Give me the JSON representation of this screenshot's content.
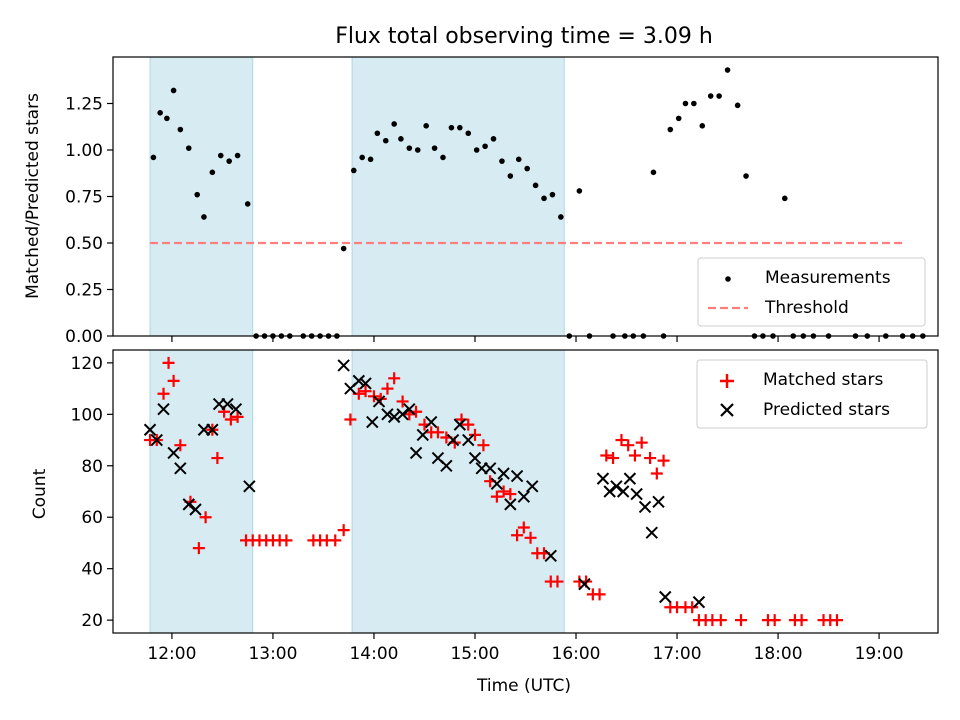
{
  "chart_data": [
    {
      "type": "scatter",
      "title": "Flux total observing time = 3.09 h",
      "xlabel": "",
      "ylabel": "Matched/Predicted stars",
      "ylim": [
        0,
        1.5
      ],
      "yticks": [
        "0.00",
        "0.25",
        "0.50",
        "0.75",
        "1.00",
        "1.25"
      ],
      "shaded_intervals": [
        [
          "11:47",
          "12:48"
        ],
        [
          "13:47",
          "15:53"
        ]
      ],
      "threshold": {
        "name": "Threshold",
        "value": 0.5,
        "x_start": "11:47",
        "x_end": "19:15",
        "color": "#ff7f7f"
      },
      "legend_position": "lower right",
      "series": [
        {
          "name": "Measurements",
          "color": "#000000",
          "marker": "dot",
          "points": [
            [
              "11:49",
              0.96
            ],
            [
              "11:53",
              1.2
            ],
            [
              "11:57",
              1.17
            ],
            [
              "12:01",
              1.32
            ],
            [
              "12:05",
              1.11
            ],
            [
              "12:10",
              1.01
            ],
            [
              "12:15",
              0.76
            ],
            [
              "12:19",
              0.64
            ],
            [
              "12:24",
              0.88
            ],
            [
              "12:29",
              0.97
            ],
            [
              "12:34",
              0.94
            ],
            [
              "12:39",
              0.97
            ],
            [
              "12:45",
              0.71
            ],
            [
              "12:50",
              0.0
            ],
            [
              "12:55",
              0.0
            ],
            [
              "13:00",
              0.0
            ],
            [
              "13:05",
              0.0
            ],
            [
              "13:10",
              0.0
            ],
            [
              "13:18",
              0.0
            ],
            [
              "13:23",
              0.0
            ],
            [
              "13:28",
              0.0
            ],
            [
              "13:33",
              0.0
            ],
            [
              "13:38",
              0.0
            ],
            [
              "13:42",
              0.47
            ],
            [
              "13:48",
              0.89
            ],
            [
              "13:53",
              0.96
            ],
            [
              "13:58",
              0.95
            ],
            [
              "14:02",
              1.09
            ],
            [
              "14:07",
              1.05
            ],
            [
              "14:12",
              1.14
            ],
            [
              "14:16",
              1.06
            ],
            [
              "14:21",
              1.01
            ],
            [
              "14:26",
              1.0
            ],
            [
              "14:31",
              1.13
            ],
            [
              "14:36",
              1.01
            ],
            [
              "14:41",
              0.96
            ],
            [
              "14:46",
              1.12
            ],
            [
              "14:51",
              1.12
            ],
            [
              "14:56",
              1.09
            ],
            [
              "15:01",
              1.0
            ],
            [
              "15:06",
              1.02
            ],
            [
              "15:11",
              1.06
            ],
            [
              "15:16",
              0.94
            ],
            [
              "15:21",
              0.86
            ],
            [
              "15:26",
              0.95
            ],
            [
              "15:31",
              0.9
            ],
            [
              "15:36",
              0.81
            ],
            [
              "15:41",
              0.74
            ],
            [
              "15:46",
              0.76
            ],
            [
              "15:51",
              0.64
            ],
            [
              "15:56",
              0.0
            ],
            [
              "16:02",
              0.78
            ],
            [
              "16:08",
              0.0
            ],
            [
              "16:22",
              0.0
            ],
            [
              "16:29",
              0.0
            ],
            [
              "16:34",
              0.0
            ],
            [
              "16:40",
              0.0
            ],
            [
              "16:46",
              0.88
            ],
            [
              "16:52",
              0.0
            ],
            [
              "16:56",
              1.11
            ],
            [
              "17:01",
              1.17
            ],
            [
              "17:05",
              1.25
            ],
            [
              "17:10",
              1.25
            ],
            [
              "17:15",
              1.13
            ],
            [
              "17:20",
              1.29
            ],
            [
              "17:25",
              1.29
            ],
            [
              "17:30",
              1.43
            ],
            [
              "17:36",
              1.24
            ],
            [
              "17:41",
              0.86
            ],
            [
              "17:46",
              0.0
            ],
            [
              "17:51",
              0.0
            ],
            [
              "17:57",
              0.0
            ],
            [
              "18:04",
              0.74
            ],
            [
              "18:09",
              0.0
            ],
            [
              "18:15",
              0.0
            ],
            [
              "18:21",
              0.0
            ],
            [
              "18:30",
              0.0
            ],
            [
              "18:46",
              0.0
            ],
            [
              "18:53",
              0.0
            ],
            [
              "19:04",
              0.0
            ],
            [
              "19:14",
              0.0
            ],
            [
              "19:20",
              0.0
            ],
            [
              "19:26",
              0.0
            ]
          ]
        }
      ]
    },
    {
      "type": "scatter",
      "xlabel": "Time (UTC)",
      "ylabel": "Count",
      "ylim": [
        15,
        125
      ],
      "yticks": [
        "20",
        "40",
        "60",
        "80",
        "100",
        "120"
      ],
      "xticks": [
        "12:00",
        "13:00",
        "14:00",
        "15:00",
        "16:00",
        "17:00",
        "18:00",
        "19:00"
      ],
      "xlim": [
        "11:25",
        "19:35"
      ],
      "shaded_intervals": [
        [
          "11:47",
          "12:48"
        ],
        [
          "13:47",
          "15:53"
        ]
      ],
      "legend_position": "upper right",
      "series": [
        {
          "name": "Matched stars",
          "color": "#ff0000",
          "marker": "plus",
          "points": [
            [
              "11:47",
              90
            ],
            [
              "11:51",
              90
            ],
            [
              "11:55",
              108
            ],
            [
              "11:58",
              120
            ],
            [
              "12:01",
              113
            ],
            [
              "12:05",
              88
            ],
            [
              "12:11",
              66
            ],
            [
              "12:16",
              48
            ],
            [
              "12:20",
              60
            ],
            [
              "12:24",
              94
            ],
            [
              "12:27",
              83
            ],
            [
              "12:31",
              101
            ],
            [
              "12:35",
              98
            ],
            [
              "12:39",
              99
            ],
            [
              "12:44",
              51
            ],
            [
              "12:48",
              51
            ],
            [
              "12:52",
              51
            ],
            [
              "12:56",
              51
            ],
            [
              "13:00",
              51
            ],
            [
              "13:04",
              51
            ],
            [
              "13:08",
              51
            ],
            [
              "13:24",
              51
            ],
            [
              "13:28",
              51
            ],
            [
              "13:32",
              51
            ],
            [
              "13:37",
              51
            ],
            [
              "13:42",
              55
            ],
            [
              "13:46",
              98
            ],
            [
              "13:51",
              108
            ],
            [
              "13:55",
              109
            ],
            [
              "14:00",
              107
            ],
            [
              "14:04",
              106
            ],
            [
              "14:08",
              110
            ],
            [
              "14:12",
              114
            ],
            [
              "14:17",
              105
            ],
            [
              "14:21",
              100
            ],
            [
              "14:25",
              101
            ],
            [
              "14:30",
              96
            ],
            [
              "14:34",
              93
            ],
            [
              "14:38",
              93
            ],
            [
              "14:43",
              91
            ],
            [
              "14:48",
              89
            ],
            [
              "14:52",
              98
            ],
            [
              "14:56",
              96
            ],
            [
              "15:00",
              92
            ],
            [
              "15:05",
              88
            ],
            [
              "15:09",
              74
            ],
            [
              "15:13",
              68
            ],
            [
              "15:17",
              70
            ],
            [
              "15:21",
              69
            ],
            [
              "15:25",
              53
            ],
            [
              "15:29",
              56
            ],
            [
              "15:33",
              52
            ],
            [
              "15:37",
              46
            ],
            [
              "15:41",
              46
            ],
            [
              "15:45",
              35
            ],
            [
              "15:49",
              35
            ],
            [
              "16:02",
              35
            ],
            [
              "16:06",
              35
            ],
            [
              "16:10",
              30
            ],
            [
              "16:14",
              30
            ],
            [
              "16:18",
              84
            ],
            [
              "16:22",
              83
            ],
            [
              "16:27",
              90
            ],
            [
              "16:31",
              88
            ],
            [
              "16:35",
              84
            ],
            [
              "16:39",
              89
            ],
            [
              "16:44",
              83
            ],
            [
              "16:48",
              77
            ],
            [
              "16:52",
              82
            ],
            [
              "16:56",
              25
            ],
            [
              "17:00",
              25
            ],
            [
              "17:05",
              25
            ],
            [
              "17:09",
              25
            ],
            [
              "17:13",
              20
            ],
            [
              "17:17",
              20
            ],
            [
              "17:21",
              20
            ],
            [
              "17:26",
              20
            ],
            [
              "17:38",
              20
            ],
            [
              "17:54",
              20
            ],
            [
              "17:58",
              20
            ],
            [
              "18:10",
              20
            ],
            [
              "18:14",
              20
            ],
            [
              "18:27",
              20
            ],
            [
              "18:31",
              20
            ],
            [
              "18:35",
              20
            ]
          ]
        },
        {
          "name": "Predicted stars",
          "color": "#000000",
          "marker": "x",
          "points": [
            [
              "11:47",
              94
            ],
            [
              "11:51",
              90
            ],
            [
              "11:55",
              102
            ],
            [
              "12:01",
              85
            ],
            [
              "12:05",
              79
            ],
            [
              "12:10",
              65
            ],
            [
              "12:14",
              63
            ],
            [
              "12:19",
              94
            ],
            [
              "12:24",
              94
            ],
            [
              "12:28",
              104
            ],
            [
              "12:33",
              104
            ],
            [
              "12:38",
              102
            ],
            [
              "12:46",
              72
            ],
            [
              "13:42",
              119
            ],
            [
              "13:46",
              110
            ],
            [
              "13:51",
              113
            ],
            [
              "13:55",
              112
            ],
            [
              "13:59",
              97
            ],
            [
              "14:03",
              105
            ],
            [
              "14:08",
              100
            ],
            [
              "14:12",
              99
            ],
            [
              "14:17",
              100
            ],
            [
              "14:21",
              102
            ],
            [
              "14:25",
              85
            ],
            [
              "14:29",
              92
            ],
            [
              "14:34",
              97
            ],
            [
              "14:38",
              83
            ],
            [
              "14:43",
              80
            ],
            [
              "14:47",
              90
            ],
            [
              "14:51",
              96
            ],
            [
              "14:56",
              90
            ],
            [
              "15:00",
              83
            ],
            [
              "15:04",
              79
            ],
            [
              "15:09",
              79
            ],
            [
              "15:13",
              73
            ],
            [
              "15:17",
              77
            ],
            [
              "15:21",
              65
            ],
            [
              "15:25",
              76
            ],
            [
              "15:29",
              68
            ],
            [
              "15:34",
              72
            ],
            [
              "15:45",
              45
            ],
            [
              "16:05",
              34
            ],
            [
              "16:16",
              75
            ],
            [
              "16:20",
              70
            ],
            [
              "16:24",
              72
            ],
            [
              "16:28",
              70
            ],
            [
              "16:32",
              75
            ],
            [
              "16:36",
              69
            ],
            [
              "16:41",
              64
            ],
            [
              "16:45",
              54
            ],
            [
              "16:49",
              66
            ],
            [
              "16:53",
              29
            ],
            [
              "17:13",
              27
            ]
          ]
        }
      ]
    }
  ]
}
